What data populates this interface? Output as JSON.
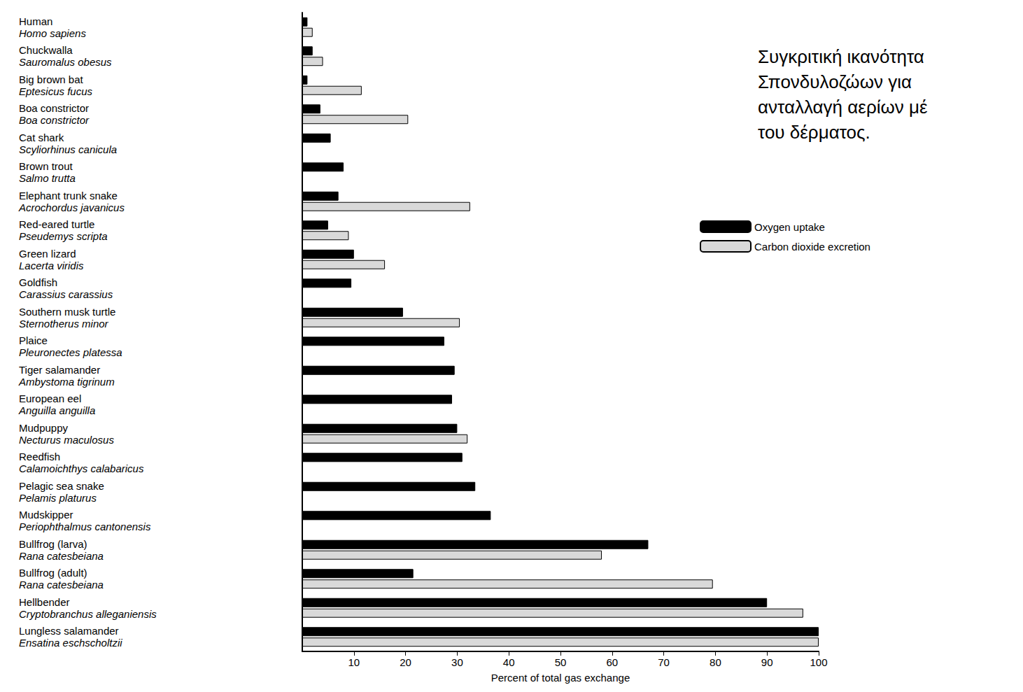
{
  "chart_data": {
    "type": "bar",
    "orientation": "horizontal",
    "title": "Συγκριτική ικανότητα Σπονδυλοζώων για ανταλλαγή αερίων μέ του δέρματος.",
    "x_label": "Percent of total gas exchange",
    "categories": [
      "Human",
      "Chuckwalla",
      "Big brown bat",
      "Boa constrictor",
      "Cat shark",
      "Brown trout",
      "Elephant trunk snake",
      "Red-eared turtle",
      "Green lizard",
      "Goldfish",
      "Southern musk turtle",
      "Plaice",
      "Tiger salamander",
      "European eel",
      "Mudpuppy",
      "Reedfish",
      "Pelagic sea snake",
      "Mudskipper",
      "Bullfrog (larva)",
      "Bullfrog (adult)",
      "Hellbender",
      "Lungless salamander"
    ],
    "scientific_names": [
      "Homo sapiens",
      "Sauromalus obesus",
      "Eptesicus fucus",
      "Boa constrictor",
      "Scyliorhinus canicula",
      "Salmo trutta",
      "Acrochordus javanicus",
      "Pseudemys scripta",
      "Lacerta viridis",
      "Carassius carassius",
      "Sternotherus minor",
      "Pleuronectes platessa",
      "Ambystoma tigrinum",
      "Anguilla anguilla",
      "Necturus maculosus",
      "Calamoichthys calabaricus",
      "Pelamis platurus",
      "Periophthalmus cantonensis",
      "Rana catesbeiana",
      "Rana catesbeiana",
      "Cryptobranchus alleganiensis",
      "Ensatina eschscholtzii"
    ],
    "series": [
      {
        "name": "Oxygen uptake",
        "color": "#000000",
        "values": [
          1,
          2,
          1,
          3.5,
          5.5,
          8,
          7,
          5,
          10,
          9.5,
          19.5,
          27.5,
          29.5,
          29,
          30,
          31,
          33.5,
          36.5,
          67,
          21.5,
          90,
          100
        ]
      },
      {
        "name": "Carbon dioxide excretion",
        "color": "#d9d9d9",
        "values": [
          2,
          4,
          11.5,
          20.5,
          null,
          null,
          32.5,
          9,
          16,
          null,
          30.5,
          null,
          null,
          null,
          32,
          null,
          null,
          null,
          58,
          79.5,
          97,
          100
        ]
      }
    ],
    "xlim": [
      0,
      100
    ],
    "xticks": [
      10,
      20,
      30,
      40,
      50,
      60,
      70,
      80,
      90,
      100
    ],
    "grid": false,
    "legend": "right"
  }
}
